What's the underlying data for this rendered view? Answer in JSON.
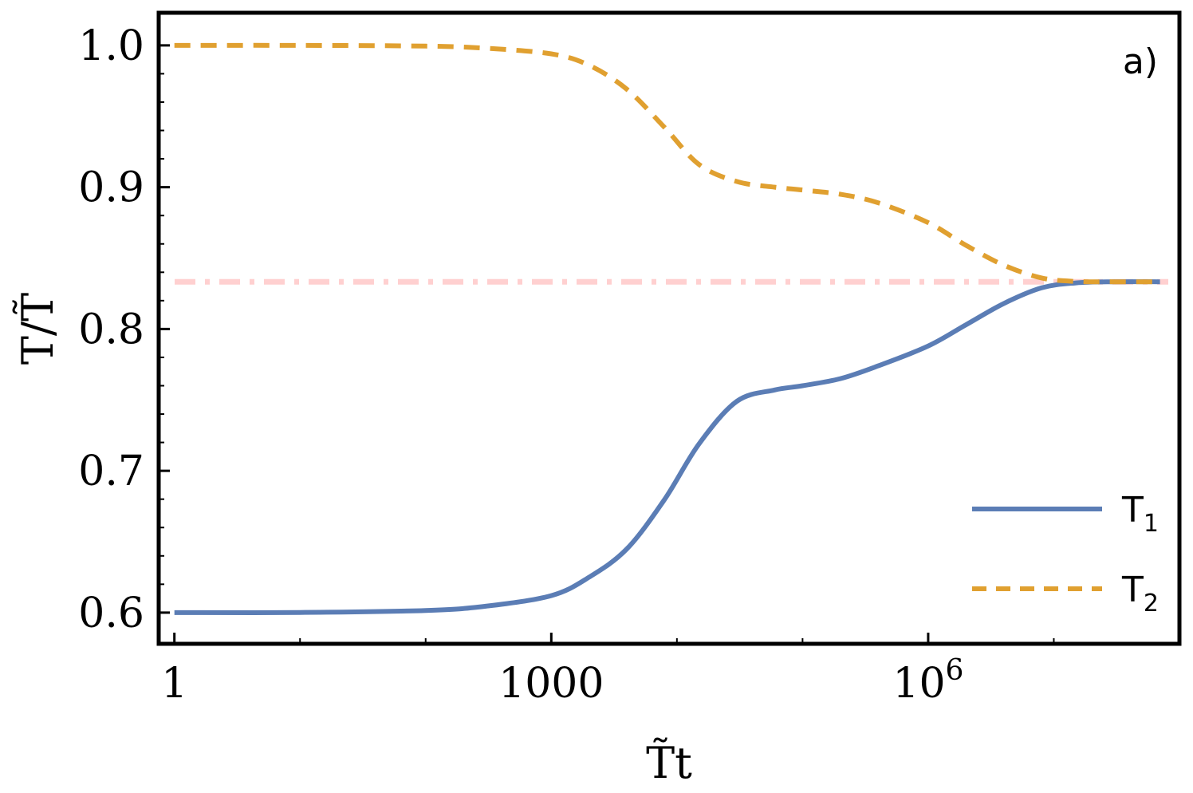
{
  "chart_data": {
    "type": "line",
    "panel_label": "a)",
    "xlabel": "T̃t",
    "ylabel": "T/T̃",
    "x_scale": "log",
    "xlim": [
      0.75,
      100000000
    ],
    "ylim": [
      0.578,
      1.023
    ],
    "x_ticks": [
      {
        "value": 1,
        "label": "1"
      },
      {
        "value": 1000,
        "label": "1000"
      },
      {
        "value": 1000000,
        "label_base": "10",
        "label_exp": "6"
      }
    ],
    "y_ticks": [
      {
        "value": 0.6,
        "label": "0.6"
      },
      {
        "value": 0.7,
        "label": "0.7"
      },
      {
        "value": 0.8,
        "label": "0.8"
      },
      {
        "value": 0.9,
        "label": "0.9"
      },
      {
        "value": 1.0,
        "label": "1.0"
      }
    ],
    "reference_line": {
      "y": 0.8333,
      "color": "#ffd0d0",
      "style": "dash-dot"
    },
    "series": [
      {
        "name": "T",
        "subscript": "1",
        "color": "#5b7db5",
        "style": "solid",
        "x": [
          1,
          10,
          100,
          300,
          1000,
          2000,
          4000,
          8000,
          15000,
          30000,
          60000,
          100000,
          200000,
          400000,
          1000000,
          2000000,
          4000000,
          8000000,
          15000000,
          30000000,
          70000000
        ],
        "y": [
          0.6,
          0.6001,
          0.6015,
          0.6045,
          0.612,
          0.625,
          0.645,
          0.68,
          0.719,
          0.749,
          0.757,
          0.76,
          0.765,
          0.774,
          0.788,
          0.803,
          0.818,
          0.829,
          0.8325,
          0.8333,
          0.8333
        ]
      },
      {
        "name": "T",
        "subscript": "2",
        "color": "#e0a030",
        "style": "dashed",
        "x": [
          1,
          10,
          100,
          300,
          1000,
          2000,
          4000,
          8000,
          15000,
          30000,
          60000,
          100000,
          200000,
          400000,
          1000000,
          2000000,
          4000000,
          8000000,
          15000000,
          30000000,
          70000000
        ],
        "y": [
          1.0,
          1.0,
          0.9995,
          0.998,
          0.994,
          0.986,
          0.969,
          0.942,
          0.916,
          0.904,
          0.9,
          0.898,
          0.895,
          0.889,
          0.875,
          0.859,
          0.845,
          0.836,
          0.8335,
          0.8333,
          0.8333
        ]
      }
    ],
    "legend_position": "bottom-right"
  }
}
